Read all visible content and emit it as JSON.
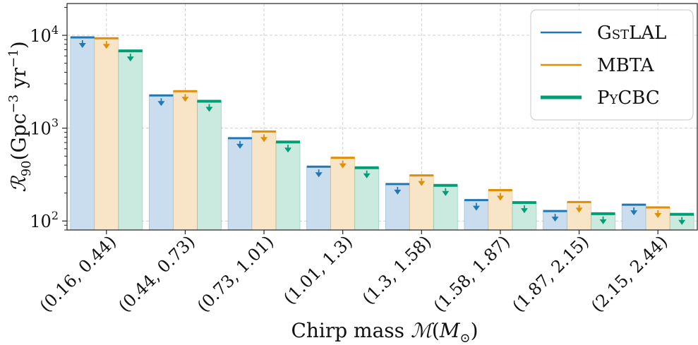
{
  "chart_data": {
    "type": "bar",
    "scale": "log",
    "ylim": [
      80,
      22000
    ],
    "yticks": [
      {
        "value": 100,
        "label_base": "10",
        "label_exp": "2"
      },
      {
        "value": 1000,
        "label_base": "10",
        "label_exp": "3"
      },
      {
        "value": 10000,
        "label_base": "10",
        "label_exp": "4"
      }
    ],
    "ylabel": {
      "symbol": "ℛ",
      "subscript": "90",
      "unit_pre": "(Gpc",
      "unit_exp1": "−3",
      "unit_mid": " yr",
      "unit_exp2": "−1",
      "unit_post": ")"
    },
    "xlabel": {
      "text": "Chirp mass ",
      "symbol": "ℳ",
      "paren_open": "(",
      "m": "M",
      "sub": "⊙",
      "paren_close": ")"
    },
    "categories": [
      "(0.16, 0.44)",
      "(0.44, 0.73)",
      "(0.73, 1.01)",
      "(1.01, 1.3)",
      "(1.3, 1.58)",
      "(1.58, 1.87)",
      "(1.87, 2.15)",
      "(2.15, 2.44)"
    ],
    "series": [
      {
        "name": "GstLAL",
        "name_display": "GstLAL",
        "color": "#1f77b4",
        "fill": "#c9ddee",
        "values": [
          9500,
          2250,
          780,
          385,
          250,
          168,
          128,
          150
        ]
      },
      {
        "name": "MBTA",
        "name_display": "MBTA",
        "color": "#de8f05",
        "fill": "#f8e5c8",
        "values": [
          9300,
          2500,
          920,
          480,
          310,
          215,
          160,
          140
        ]
      },
      {
        "name": "PyCBC",
        "name_display": "PyCBC",
        "color": "#029e73",
        "fill": "#cbeadf",
        "values": [
          6800,
          1950,
          710,
          375,
          242,
          158,
          120,
          118
        ]
      }
    ],
    "grid": true,
    "legend": "top-right"
  }
}
